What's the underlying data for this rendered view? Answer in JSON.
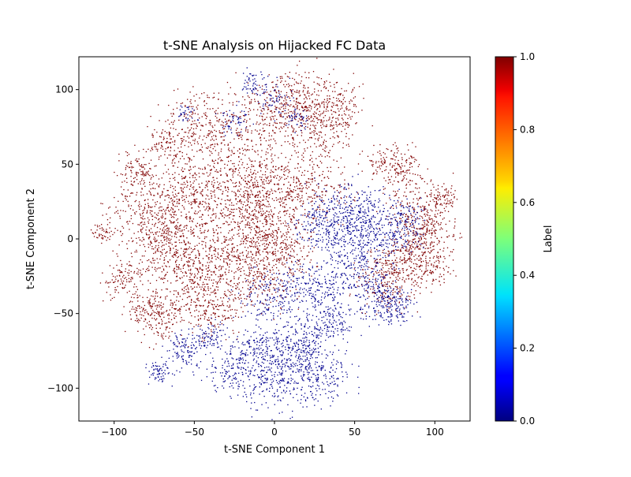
{
  "chart_data": {
    "type": "scatter",
    "title": "t-SNE Analysis on Hijacked FC Data",
    "xlabel": "t-SNE Component 1",
    "ylabel": "t-SNE Component 2",
    "xlim": [
      -122,
      122
    ],
    "ylim": [
      -122,
      122
    ],
    "xticks": [
      -100,
      -50,
      0,
      50,
      100
    ],
    "yticks": [
      -100,
      -50,
      0,
      50,
      100
    ],
    "xtick_labels": [
      "−100",
      "−50",
      "0",
      "50",
      "100"
    ],
    "ytick_labels": [
      "−100",
      "−50",
      "0",
      "50",
      "100"
    ],
    "grid": false,
    "colorbar": {
      "label": "Label",
      "range": [
        0.0,
        1.0
      ],
      "ticks": [
        0.0,
        0.2,
        0.4,
        0.6,
        0.8,
        1.0
      ],
      "tick_labels": [
        "0.0",
        "0.2",
        "0.4",
        "0.6",
        "0.8",
        "1.0"
      ],
      "colormap": "jet"
    },
    "colors": {
      "label_0": "#00008f",
      "label_1": "#800000"
    },
    "series": [
      {
        "label_value": 1,
        "clusters": [
          {
            "x": -108,
            "y": 4,
            "r": 3,
            "n": 40
          },
          {
            "x": -95,
            "y": -27,
            "r": 6,
            "n": 100
          },
          {
            "x": -85,
            "y": 45,
            "r": 7,
            "n": 120
          },
          {
            "x": -80,
            "y": 15,
            "r": 12,
            "n": 260
          },
          {
            "x": -78,
            "y": -45,
            "r": 8,
            "n": 120
          },
          {
            "x": -70,
            "y": -55,
            "r": 8,
            "n": 130
          },
          {
            "x": -68,
            "y": 65,
            "r": 6,
            "n": 80
          },
          {
            "x": -65,
            "y": -5,
            "r": 12,
            "n": 300
          },
          {
            "x": -55,
            "y": 30,
            "r": 12,
            "n": 280
          },
          {
            "x": -45,
            "y": 75,
            "r": 12,
            "n": 280
          },
          {
            "x": -45,
            "y": -20,
            "r": 12,
            "n": 300
          },
          {
            "x": -40,
            "y": -45,
            "r": 10,
            "n": 200
          },
          {
            "x": -25,
            "y": 40,
            "r": 14,
            "n": 360
          },
          {
            "x": -20,
            "y": 5,
            "r": 13,
            "n": 340
          },
          {
            "x": -10,
            "y": -25,
            "r": 12,
            "n": 260
          },
          {
            "x": -5,
            "y": 80,
            "r": 12,
            "n": 260
          },
          {
            "x": 0,
            "y": 30,
            "r": 12,
            "n": 300
          },
          {
            "x": 5,
            "y": -5,
            "r": 10,
            "n": 240
          },
          {
            "x": 15,
            "y": 95,
            "r": 10,
            "n": 220
          },
          {
            "x": 25,
            "y": 35,
            "r": 12,
            "n": 220
          },
          {
            "x": 30,
            "y": 75,
            "r": 10,
            "n": 200
          },
          {
            "x": 40,
            "y": 90,
            "r": 8,
            "n": 120
          },
          {
            "x": 75,
            "y": 50,
            "r": 8,
            "n": 180
          },
          {
            "x": 90,
            "y": 20,
            "r": 10,
            "n": 220
          },
          {
            "x": 95,
            "y": 0,
            "r": 8,
            "n": 180
          },
          {
            "x": 80,
            "y": -15,
            "r": 9,
            "n": 200
          },
          {
            "x": 70,
            "y": -30,
            "r": 9,
            "n": 180
          },
          {
            "x": 100,
            "y": -20,
            "r": 6,
            "n": 100
          },
          {
            "x": 105,
            "y": 28,
            "r": 4,
            "n": 60
          }
        ]
      },
      {
        "label_value": 0,
        "clusters": [
          {
            "x": -72,
            "y": -90,
            "r": 4,
            "n": 70
          },
          {
            "x": -55,
            "y": -75,
            "r": 6,
            "n": 120
          },
          {
            "x": -55,
            "y": 85,
            "r": 3,
            "n": 30
          },
          {
            "x": -40,
            "y": -65,
            "r": 5,
            "n": 80
          },
          {
            "x": -30,
            "y": -90,
            "r": 6,
            "n": 90
          },
          {
            "x": -15,
            "y": -75,
            "r": 7,
            "n": 110
          },
          {
            "x": -15,
            "y": 105,
            "r": 4,
            "n": 50
          },
          {
            "x": -25,
            "y": 80,
            "r": 5,
            "n": 50
          },
          {
            "x": 0,
            "y": -90,
            "r": 12,
            "n": 340
          },
          {
            "x": 0,
            "y": -40,
            "r": 10,
            "n": 200
          },
          {
            "x": 15,
            "y": -70,
            "r": 10,
            "n": 240
          },
          {
            "x": 25,
            "y": -30,
            "r": 9,
            "n": 160
          },
          {
            "x": 30,
            "y": -90,
            "r": 10,
            "n": 200
          },
          {
            "x": 35,
            "y": -55,
            "r": 7,
            "n": 130
          },
          {
            "x": 45,
            "y": 15,
            "r": 12,
            "n": 280
          },
          {
            "x": 50,
            "y": -20,
            "r": 10,
            "n": 200
          },
          {
            "x": 60,
            "y": 5,
            "r": 12,
            "n": 260
          },
          {
            "x": 65,
            "y": -40,
            "r": 8,
            "n": 160
          },
          {
            "x": 80,
            "y": 10,
            "r": 8,
            "n": 150
          },
          {
            "x": 75,
            "y": -45,
            "r": 6,
            "n": 100
          },
          {
            "x": 30,
            "y": 10,
            "r": 8,
            "n": 140
          },
          {
            "x": 0,
            "y": 95,
            "r": 6,
            "n": 60
          },
          {
            "x": 15,
            "y": 80,
            "r": 4,
            "n": 40
          }
        ]
      }
    ]
  }
}
